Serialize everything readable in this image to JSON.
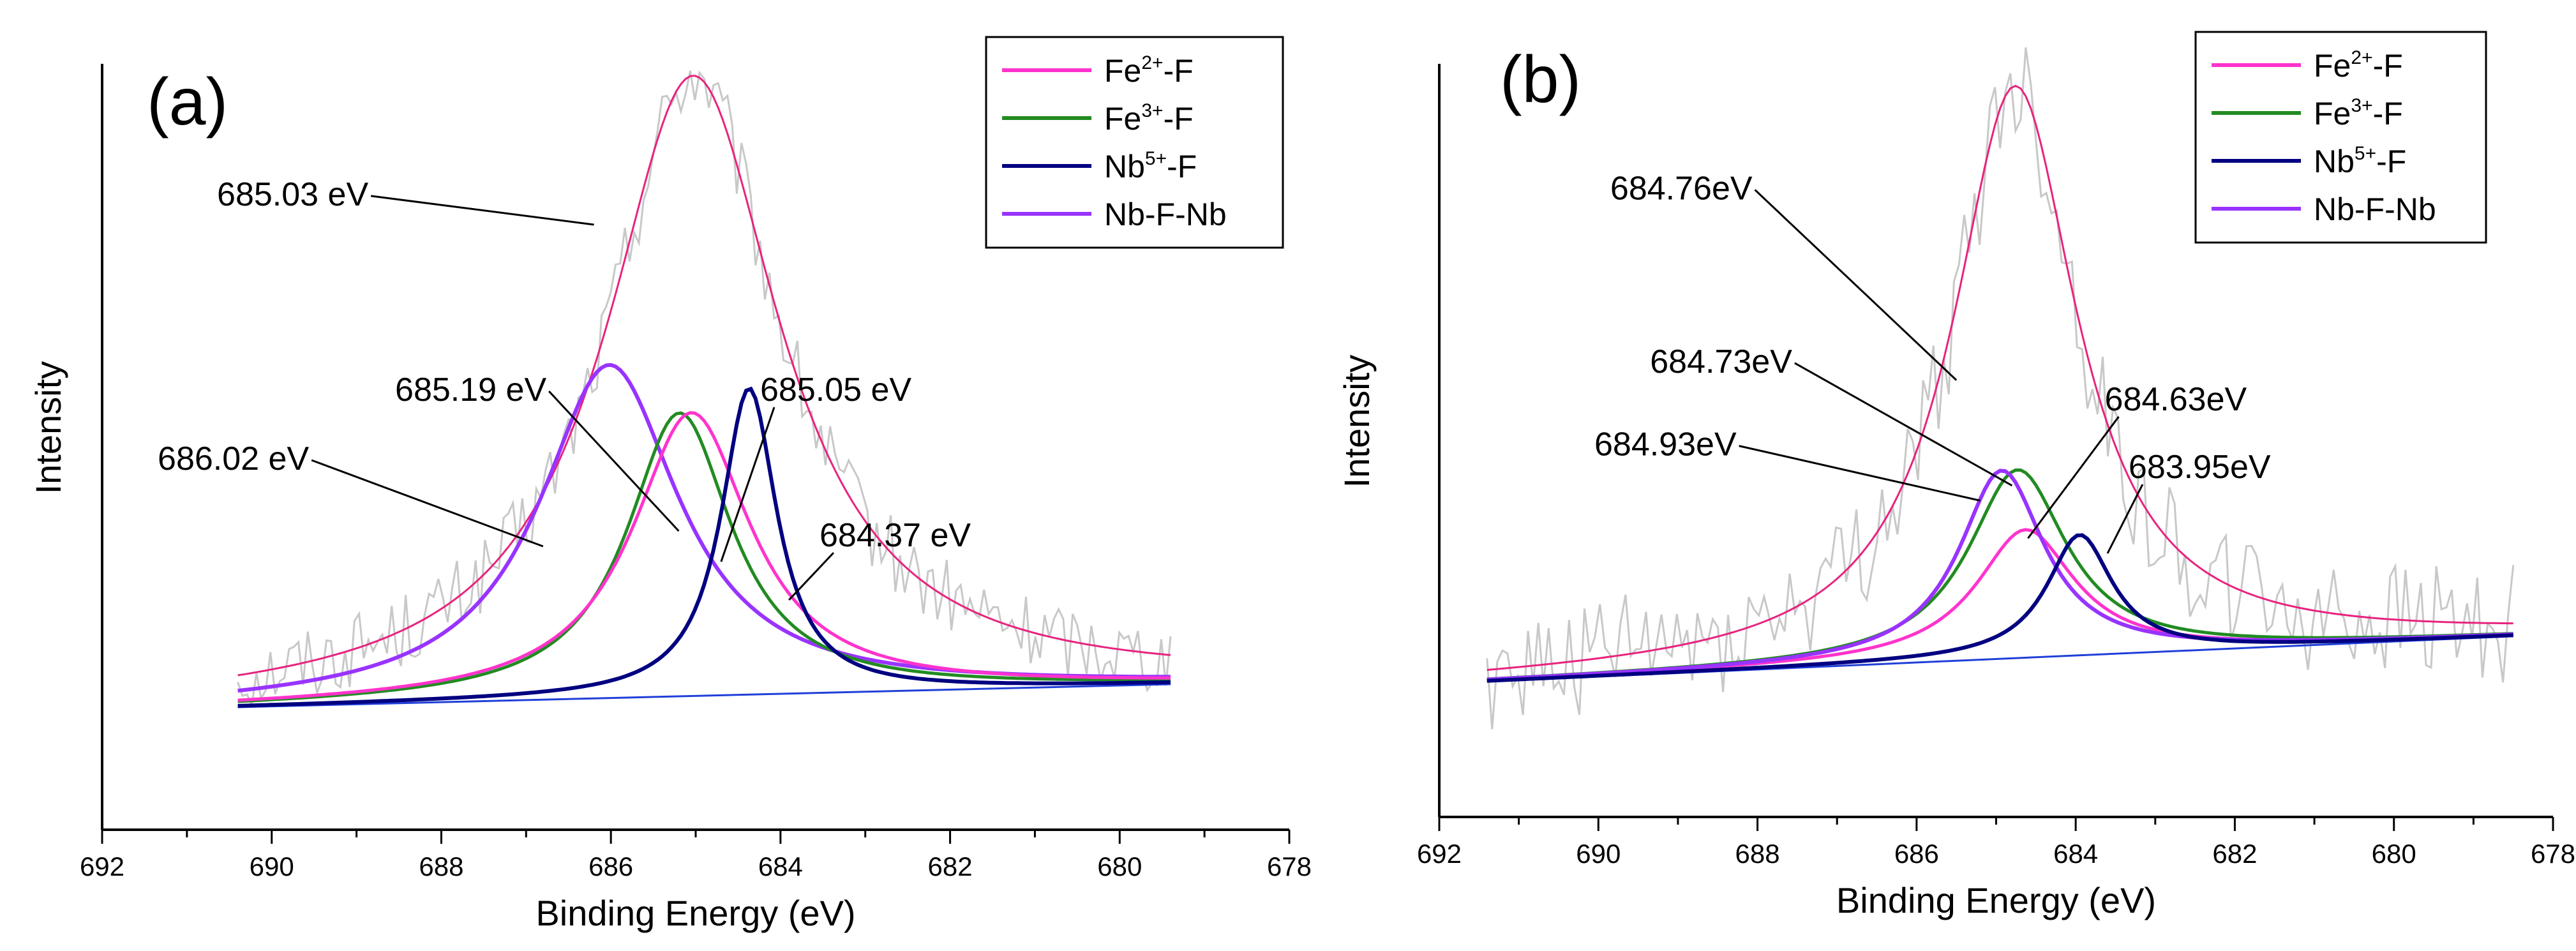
{
  "chart_data": [
    {
      "type": "line",
      "panel_label": "(a)",
      "xlabel": "Binding Energy (eV)",
      "ylabel": "Intensity",
      "xlim": [
        692,
        678
      ],
      "ylim": [
        0,
        1
      ],
      "x_ticks": [
        "692",
        "690",
        "688",
        "686",
        "684",
        "682",
        "680",
        "678"
      ],
      "grid": false,
      "legend_position": "top-right",
      "legend": [
        {
          "name": "Fe",
          "sup": "2+",
          "suffix": "-F",
          "color": "#ff33cc"
        },
        {
          "name": "Fe",
          "sup": "3+",
          "suffix": "-F",
          "color": "#228b22"
        },
        {
          "name": "Nb",
          "sup": "5+",
          "suffix": "-F",
          "color": "#000080"
        },
        {
          "name": "Nb-F-Nb",
          "sup": "",
          "suffix": "",
          "color": "#9933ff"
        }
      ],
      "x_range": [
        690.4,
        679.4
      ],
      "baseline": [
        0.16,
        0.19
      ],
      "noise_amplitude": 0.05,
      "series": [
        {
          "name": "Envelope",
          "center": 685.03,
          "height": 0.81,
          "width": 1.25,
          "color": "#e8237e",
          "stroke_width": 3
        },
        {
          "name": "Nb-F-Nb",
          "center": 686.02,
          "height": 0.435,
          "width": 1.0,
          "color": "#9933ff",
          "stroke_width": 6
        },
        {
          "name": "Fe3+-F",
          "center": 685.19,
          "height": 0.37,
          "width": 0.75,
          "color": "#228b22",
          "stroke_width": 5
        },
        {
          "name": "Fe2+-F",
          "center": 685.05,
          "height": 0.37,
          "width": 0.85,
          "color": "#ff33cc",
          "stroke_width": 5
        },
        {
          "name": "Nb5+-F",
          "center": 684.37,
          "height": 0.4,
          "width": 0.4,
          "color": "#000080",
          "stroke_width": 6
        }
      ],
      "annotations": [
        {
          "text": "685.03 eV",
          "x": 688.8,
          "y": 0.815,
          "to_x": 686.2,
          "to_y": 0.79
        },
        {
          "text": "686.02 eV",
          "x": 689.5,
          "y": 0.47,
          "to_x": 686.8,
          "to_y": 0.37
        },
        {
          "text": "685.19 eV",
          "x": 686.7,
          "y": 0.56,
          "to_x": 685.2,
          "to_y": 0.39
        },
        {
          "text": "685.05 eV",
          "x": 684.3,
          "y": 0.56,
          "to_x": 684.7,
          "to_y": 0.35
        },
        {
          "text": "684.37 eV",
          "x": 683.6,
          "y": 0.37,
          "to_x": 683.9,
          "to_y": 0.3
        }
      ]
    },
    {
      "type": "line",
      "panel_label": "(b)",
      "xlabel": "Binding Energy (eV)",
      "ylabel": "Intensity",
      "xlim": [
        692,
        678
      ],
      "ylim": [
        0,
        1
      ],
      "x_ticks": [
        "692",
        "690",
        "688",
        "686",
        "684",
        "682",
        "680",
        "678"
      ],
      "grid": false,
      "legend_position": "top-right",
      "legend": [
        {
          "name": "Fe",
          "sup": "2+",
          "suffix": "-F",
          "color": "#ff33cc"
        },
        {
          "name": "Fe",
          "sup": "3+",
          "suffix": "-F",
          "color": "#228b22"
        },
        {
          "name": "Nb",
          "sup": "5+",
          "suffix": "-F",
          "color": "#000080"
        },
        {
          "name": "Nb-F-Nb",
          "sup": "",
          "suffix": "",
          "color": "#9933ff"
        }
      ],
      "x_range": [
        691.4,
        678.5
      ],
      "baseline": [
        0.18,
        0.24
      ],
      "noise_amplitude": 0.08,
      "series": [
        {
          "name": "Envelope",
          "center": 684.76,
          "height": 0.76,
          "width": 0.95,
          "color": "#e8237e",
          "stroke_width": 3
        },
        {
          "name": "Fe2+-F",
          "center": 684.63,
          "height": 0.17,
          "width": 0.75,
          "color": "#ff33cc",
          "stroke_width": 5
        },
        {
          "name": "Fe3+-F",
          "center": 684.73,
          "height": 0.25,
          "width": 0.75,
          "color": "#228b22",
          "stroke_width": 5
        },
        {
          "name": "Nb-F-Nb",
          "center": 684.93,
          "height": 0.25,
          "width": 0.65,
          "color": "#9933ff",
          "stroke_width": 6
        },
        {
          "name": "Nb5+-F",
          "center": 683.95,
          "height": 0.16,
          "width": 0.5,
          "color": "#000080",
          "stroke_width": 6
        }
      ],
      "annotations": [
        {
          "text": "684.76eV",
          "x": 688.0,
          "y": 0.82,
          "to_x": 685.5,
          "to_y": 0.58
        },
        {
          "text": "684.73eV",
          "x": 687.5,
          "y": 0.59,
          "to_x": 684.8,
          "to_y": 0.44
        },
        {
          "text": "684.93eV",
          "x": 688.2,
          "y": 0.48,
          "to_x": 685.2,
          "to_y": 0.42
        },
        {
          "text": "684.63eV",
          "x": 683.7,
          "y": 0.54,
          "to_x": 684.6,
          "to_y": 0.37
        },
        {
          "text": "683.95eV",
          "x": 683.4,
          "y": 0.45,
          "to_x": 683.6,
          "to_y": 0.35
        }
      ]
    }
  ]
}
